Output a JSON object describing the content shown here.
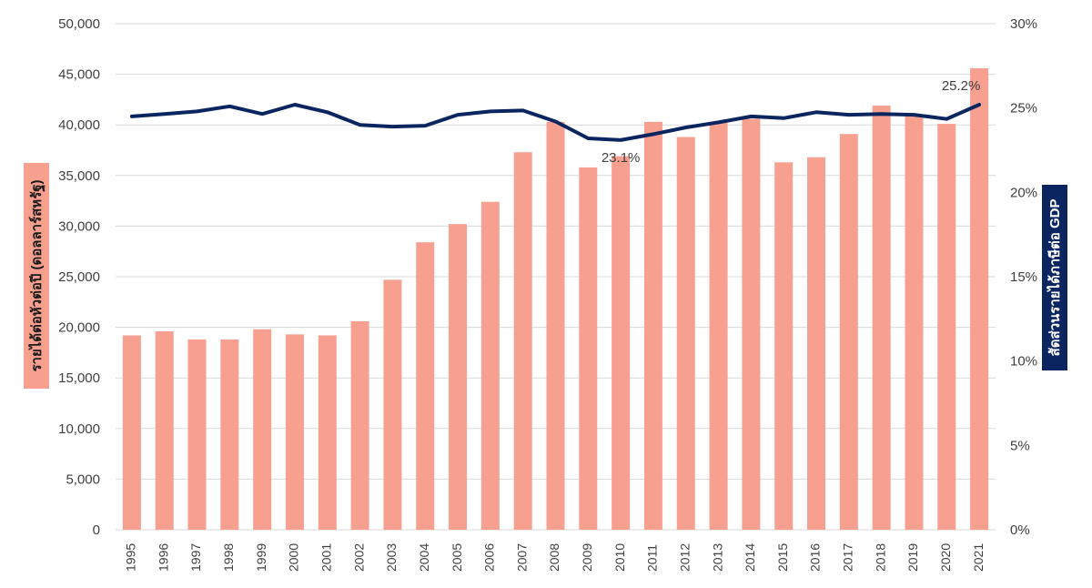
{
  "chart_data": {
    "type": "bar",
    "categories": [
      "1995",
      "1996",
      "1997",
      "1998",
      "1999",
      "2000",
      "2001",
      "2002",
      "2003",
      "2004",
      "2005",
      "2006",
      "2007",
      "2008",
      "2009",
      "2010",
      "2011",
      "2012",
      "2013",
      "2014",
      "2015",
      "2016",
      "2017",
      "2018",
      "2019",
      "2020",
      "2021"
    ],
    "series": [
      {
        "type": "bar",
        "axis": "left",
        "color": "#f7a08f",
        "values": [
          19200,
          19600,
          18800,
          18800,
          19800,
          19300,
          19200,
          20600,
          24700,
          28400,
          30200,
          32400,
          37300,
          40300,
          35800,
          36900,
          40300,
          38800,
          40200,
          40600,
          36300,
          36800,
          39100,
          41900,
          40900,
          40100,
          45600
        ]
      },
      {
        "type": "line",
        "axis": "right",
        "color": "#0b2560",
        "values": [
          24.5,
          24.65,
          24.8,
          25.1,
          24.65,
          25.2,
          24.75,
          24.0,
          23.9,
          23.95,
          24.6,
          24.8,
          24.85,
          24.2,
          23.2,
          23.1,
          23.45,
          23.85,
          24.15,
          24.5,
          24.4,
          24.75,
          24.6,
          24.65,
          24.6,
          24.35,
          25.2
        ]
      }
    ],
    "y_left": {
      "label": "รายได้ต่อหัวต่อปี (ดอลลาร์สหรัฐ)",
      "ylim": [
        0,
        50000
      ],
      "ticks": [
        "0",
        "5,000",
        "10,000",
        "15,000",
        "20,000",
        "25,000",
        "30,000",
        "35,000",
        "40,000",
        "45,000",
        "50,000"
      ]
    },
    "y_right": {
      "label": "สัดส่วนรายได้ภาษีต่อ GDP",
      "ylim": [
        0,
        30
      ],
      "ticks": [
        "0%",
        "5%",
        "10%",
        "15%",
        "20%",
        "25%",
        "30%"
      ]
    },
    "annotations": [
      {
        "category": "2010",
        "text": "23.1%"
      },
      {
        "category": "2021",
        "text": "25.2%"
      }
    ],
    "grid": true,
    "left_label_bg": "#f7a08f",
    "right_label_bg": "#0b2560"
  }
}
